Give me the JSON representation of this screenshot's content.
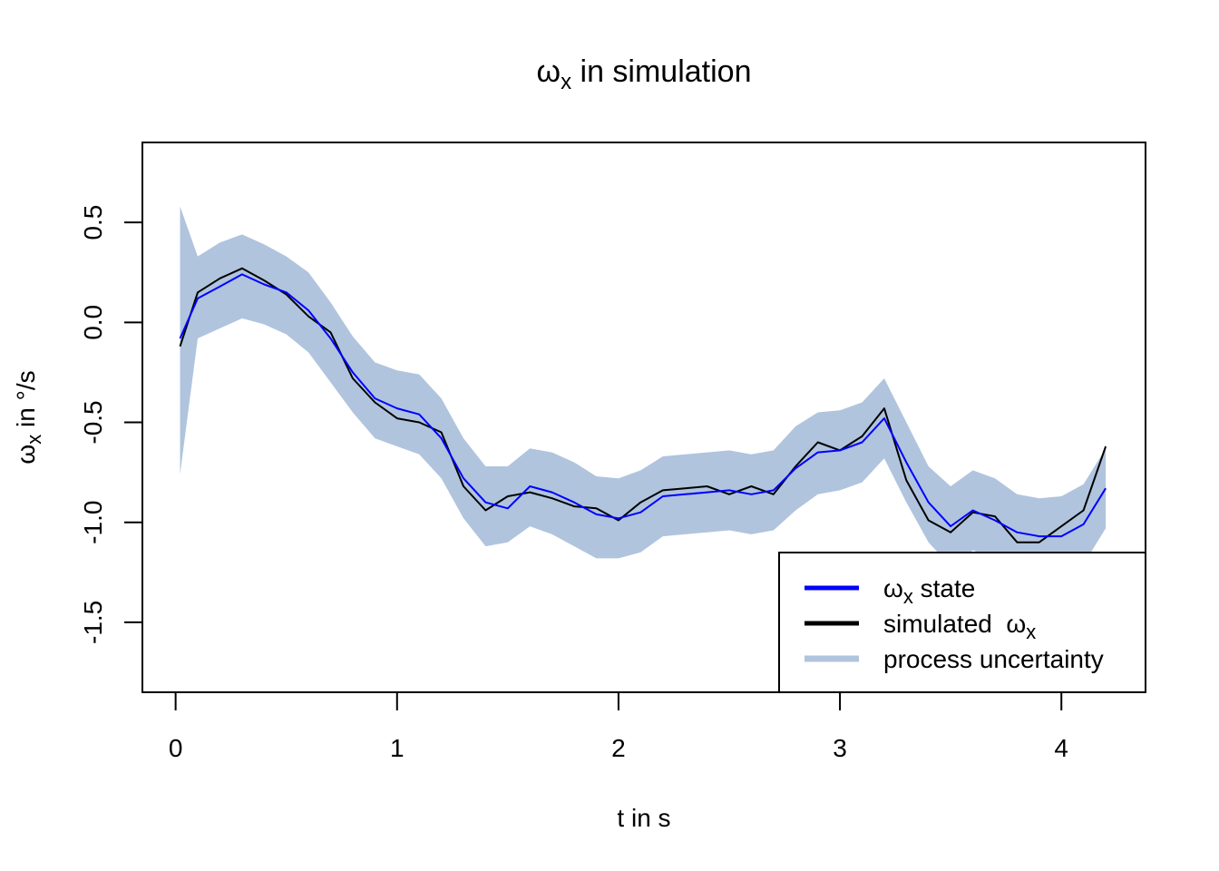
{
  "chart_data": {
    "type": "line",
    "title": {
      "symbol": "ω",
      "sub": "x",
      "rest": " in simulation"
    },
    "xlabel": "t in s",
    "ylabel": {
      "symbol": "ω",
      "sub": "x",
      "rest": " in °/s"
    },
    "xlim": [
      -0.15,
      4.38
    ],
    "ylim": [
      -1.85,
      0.9
    ],
    "xticks": [
      0,
      1,
      2,
      3,
      4
    ],
    "xtick_labels": [
      "0",
      "1",
      "2",
      "3",
      "4"
    ],
    "yticks": [
      0.5,
      0.0,
      -0.5,
      -1.0,
      -1.5
    ],
    "ytick_labels": [
      "0.5",
      "0.0",
      "-0.5",
      "-1.0",
      "-1.5"
    ],
    "grid": false,
    "legend_position": "bottom-right",
    "colors": {
      "state": "#0000ff",
      "simulated": "#000000",
      "uncertainty": "#b0c4de"
    },
    "x": [
      0.02,
      0.1,
      0.2,
      0.3,
      0.4,
      0.5,
      0.6,
      0.7,
      0.8,
      0.9,
      1.0,
      1.1,
      1.2,
      1.3,
      1.4,
      1.5,
      1.6,
      1.7,
      1.8,
      1.9,
      2.0,
      2.1,
      2.2,
      2.3,
      2.4,
      2.5,
      2.6,
      2.7,
      2.8,
      2.9,
      3.0,
      3.1,
      3.2,
      3.3,
      3.4,
      3.5,
      3.6,
      3.7,
      3.8,
      3.9,
      4.0,
      4.1,
      4.2
    ],
    "series": [
      {
        "name": "ωx state",
        "values": [
          -0.08,
          0.12,
          0.18,
          0.24,
          0.19,
          0.15,
          0.06,
          -0.08,
          -0.25,
          -0.38,
          -0.43,
          -0.46,
          -0.58,
          -0.78,
          -0.9,
          -0.93,
          -0.82,
          -0.85,
          -0.9,
          -0.96,
          -0.98,
          -0.95,
          -0.87,
          -0.86,
          -0.85,
          -0.84,
          -0.86,
          -0.84,
          -0.73,
          -0.65,
          -0.64,
          -0.6,
          -0.48,
          -0.7,
          -0.9,
          -1.02,
          -0.94,
          -0.99,
          -1.05,
          -1.07,
          -1.07,
          -1.01,
          -0.83
        ]
      },
      {
        "name": "simulated ωx",
        "values": [
          -0.12,
          0.15,
          0.22,
          0.27,
          0.21,
          0.14,
          0.03,
          -0.05,
          -0.28,
          -0.4,
          -0.48,
          -0.5,
          -0.55,
          -0.82,
          -0.94,
          -0.87,
          -0.85,
          -0.88,
          -0.92,
          -0.93,
          -0.99,
          -0.9,
          -0.84,
          -0.83,
          -0.82,
          -0.86,
          -0.82,
          -0.86,
          -0.72,
          -0.6,
          -0.64,
          -0.57,
          -0.43,
          -0.79,
          -0.99,
          -1.05,
          -0.95,
          -0.97,
          -1.1,
          -1.1,
          -1.02,
          -0.94,
          -0.62
        ]
      },
      {
        "name": "process uncertainty",
        "upper": [
          0.58,
          0.33,
          0.4,
          0.44,
          0.39,
          0.33,
          0.25,
          0.1,
          -0.07,
          -0.2,
          -0.24,
          -0.26,
          -0.38,
          -0.58,
          -0.72,
          -0.72,
          -0.63,
          -0.65,
          -0.7,
          -0.77,
          -0.78,
          -0.74,
          -0.67,
          -0.66,
          -0.65,
          -0.64,
          -0.66,
          -0.64,
          -0.52,
          -0.45,
          -0.44,
          -0.4,
          -0.28,
          -0.5,
          -0.72,
          -0.82,
          -0.74,
          -0.78,
          -0.86,
          -0.88,
          -0.87,
          -0.81,
          -0.63
        ],
        "lower": [
          -0.76,
          -0.08,
          -0.03,
          0.02,
          -0.01,
          -0.06,
          -0.15,
          -0.3,
          -0.45,
          -0.58,
          -0.62,
          -0.66,
          -0.78,
          -0.98,
          -1.12,
          -1.1,
          -1.02,
          -1.06,
          -1.12,
          -1.18,
          -1.18,
          -1.15,
          -1.07,
          -1.06,
          -1.05,
          -1.04,
          -1.06,
          -1.04,
          -0.94,
          -0.86,
          -0.84,
          -0.8,
          -0.68,
          -0.9,
          -1.1,
          -1.22,
          -1.14,
          -1.18,
          -1.25,
          -1.28,
          -1.27,
          -1.21,
          -1.03
        ]
      }
    ],
    "legend": [
      {
        "symbol": "ω",
        "sub": "x",
        "text": " state"
      },
      {
        "prefix": "simulated  ",
        "symbol": "ω",
        "sub": "x"
      },
      {
        "text": "process uncertainty"
      }
    ]
  }
}
